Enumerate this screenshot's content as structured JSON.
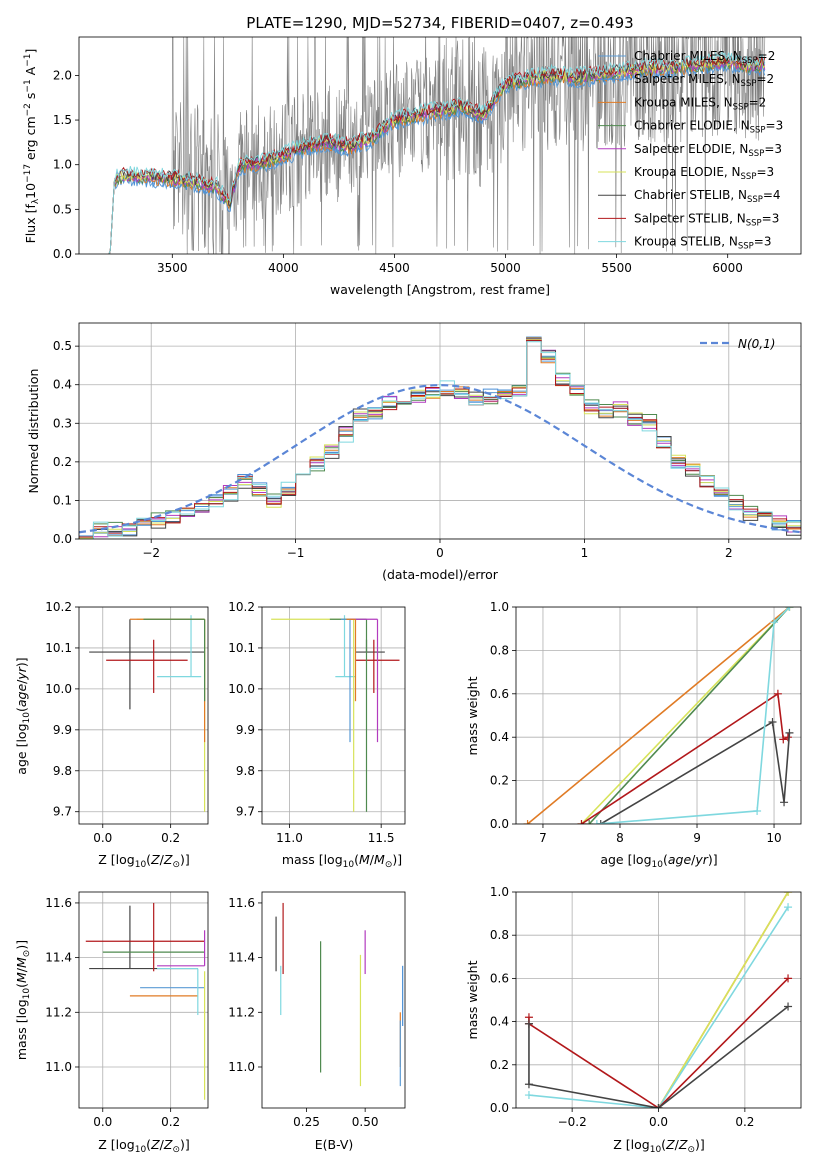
{
  "figure": {
    "title": "PLATE=1290, MJD=52734, FIBERID=0407, z=0.493"
  },
  "colors": {
    "Chabrier MILES": "#5b9bd5",
    "Salpeter MILES": "#4a8fd6",
    "Kroupa MILES": "#e07b25",
    "Chabrier ELODIE": "#4f8a4f",
    "Salpeter ELODIE": "#b23bbf",
    "Kroupa ELODIE": "#d7e35a",
    "Chabrier STELIB": "#444444",
    "Salpeter STELIB": "#b2181b",
    "Kroupa STELIB": "#7fd8df",
    "data": "#808080",
    "normal": "#5b86d6"
  },
  "chart_data": [
    {
      "id": "spectrum",
      "type": "line",
      "title": "PLATE=1290, MJD=52734, FIBERID=0407, z=0.493",
      "xlabel": "wavelength [Angstrom, rest frame]",
      "ylabel": "Flux [f_λ 10^-17 erg cm^-2 s^-1 A^-1]",
      "xlim": [
        3080,
        6330
      ],
      "ylim": [
        0,
        2.43
      ],
      "xticks": [
        3500,
        4000,
        4500,
        5000,
        5500,
        6000
      ],
      "yticks": [
        0.0,
        0.5,
        1.0,
        1.5,
        2.0
      ],
      "grid": false,
      "legend_position": "right",
      "continuum": {
        "wavelength": [
          3220,
          3240,
          3300,
          3400,
          3500,
          3600,
          3700,
          3760,
          3800,
          3900,
          4000,
          4100,
          4200,
          4300,
          4400,
          4500,
          4600,
          4700,
          4800,
          4900,
          5000,
          5100,
          5200,
          5300,
          5400,
          5500,
          5600,
          5700,
          5800,
          5900,
          6000,
          6100,
          6170
        ],
        "flux": [
          0.0,
          0.85,
          0.87,
          0.86,
          0.84,
          0.8,
          0.75,
          0.55,
          0.98,
          1.02,
          1.1,
          1.2,
          1.25,
          1.2,
          1.3,
          1.5,
          1.55,
          1.6,
          1.65,
          1.55,
          1.9,
          1.95,
          2.0,
          1.97,
          2.0,
          2.03,
          2.07,
          2.08,
          2.1,
          2.12,
          2.15,
          2.1,
          2.12
        ]
      },
      "series": [
        {
          "name": "Chabrier MILES, N_SSP=2",
          "label_main": "Chabrier MILES, N",
          "label_sub": "SSP",
          "label_tail": "=2",
          "color": "#5b9bd5"
        },
        {
          "name": "Salpeter MILES, N_SSP=2",
          "label_main": "Salpeter MILES, N",
          "label_sub": "SSP",
          "label_tail": "=2",
          "color": "#4a8fd6"
        },
        {
          "name": "Kroupa MILES, N_SSP=2",
          "label_main": "Kroupa MILES, N",
          "label_sub": "SSP",
          "label_tail": "=2",
          "color": "#e07b25"
        },
        {
          "name": "Chabrier ELODIE, N_SSP=3",
          "label_main": "Chabrier ELODIE, N",
          "label_sub": "SSP",
          "label_tail": "=3",
          "color": "#4f8a4f"
        },
        {
          "name": "Salpeter ELODIE, N_SSP=3",
          "label_main": "Salpeter ELODIE, N",
          "label_sub": "SSP",
          "label_tail": "=3",
          "color": "#b23bbf"
        },
        {
          "name": "Kroupa ELODIE, N_SSP=3",
          "label_main": "Kroupa ELODIE, N",
          "label_sub": "SSP",
          "label_tail": "=3",
          "color": "#d7e35a"
        },
        {
          "name": "Chabrier STELIB, N_SSP=4",
          "label_main": "Chabrier STELIB, N",
          "label_sub": "SSP",
          "label_tail": "=4",
          "color": "#444444"
        },
        {
          "name": "Salpeter STELIB, N_SSP=3",
          "label_main": "Salpeter STELIB, N",
          "label_sub": "SSP",
          "label_tail": "=3",
          "color": "#b2181b"
        },
        {
          "name": "Kroupa STELIB, N_SSP=3",
          "label_main": "Kroupa STELIB, N",
          "label_sub": "SSP",
          "label_tail": "=3",
          "color": "#7fd8df"
        }
      ]
    },
    {
      "id": "residuals",
      "type": "line",
      "xlabel": "(data-model)/error",
      "ylabel": "Normed distribution",
      "xlim": [
        -2.5,
        2.5
      ],
      "ylim": [
        0,
        0.56
      ],
      "xticks": [
        -2,
        -1,
        0,
        1,
        2
      ],
      "yticks": [
        0.0,
        0.1,
        0.2,
        0.3,
        0.4,
        0.5
      ],
      "grid": true,
      "legend_position": "top-right",
      "legend": "N(0,1)",
      "bin_edges_start": -2.5,
      "bin_width": 0.1,
      "histogram": [
        0.02,
        0.025,
        0.02,
        0.03,
        0.035,
        0.045,
        0.055,
        0.07,
        0.08,
        0.1,
        0.12,
        0.15,
        0.13,
        0.1,
        0.13,
        0.17,
        0.2,
        0.23,
        0.27,
        0.32,
        0.33,
        0.35,
        0.36,
        0.37,
        0.38,
        0.39,
        0.38,
        0.36,
        0.37,
        0.38,
        0.39,
        0.52,
        0.47,
        0.41,
        0.38,
        0.34,
        0.33,
        0.34,
        0.31,
        0.3,
        0.25,
        0.2,
        0.18,
        0.15,
        0.12,
        0.09,
        0.07,
        0.06,
        0.04,
        0.03
      ],
      "histogram_jitter": [
        0.012,
        0.02,
        0.015,
        0.025,
        0.02,
        0.018,
        0.022,
        0.015,
        0.02
      ],
      "normal_curve": "N(0,1)"
    },
    {
      "id": "age_vs_Z",
      "type": "scatter",
      "xlabel": "Z [log10(Z/Z_sun)]",
      "ylabel": "age [log10(age/yr)]",
      "xlim": [
        -0.07,
        0.31
      ],
      "ylim": [
        9.67,
        10.2
      ],
      "xticks": [
        0.0,
        0.2
      ],
      "yticks": [
        9.7,
        9.8,
        9.9,
        10.0,
        10.1,
        10.2
      ],
      "grid": true,
      "points": [
        {
          "series": "Chabrier STELIB",
          "x": 0.08,
          "y": 10.09,
          "xerr": [
            0.12,
            0.22
          ],
          "yerr": [
            0.14,
            0.08
          ]
        },
        {
          "series": "Salpeter STELIB",
          "x": 0.15,
          "y": 10.07,
          "xerr": [
            0.14,
            0.1
          ],
          "yerr": [
            0.08,
            0.05
          ]
        },
        {
          "series": "Kroupa STELIB",
          "x": 0.26,
          "y": 10.03,
          "xerr": [
            0.1,
            0.03
          ],
          "yerr": [
            0.0,
            0.15
          ]
        },
        {
          "series": "Kroupa ELODIE",
          "x": 0.3,
          "y": 10.17,
          "xerr": [
            0.2,
            0.0
          ],
          "yerr": [
            0.47,
            0.0
          ]
        },
        {
          "series": "Kroupa MILES",
          "x": 0.3,
          "y": 10.17,
          "xerr": [
            0.22,
            0.0
          ],
          "yerr": [
            0.3,
            0.0
          ]
        },
        {
          "series": "Chabrier ELODIE",
          "x": 0.3,
          "y": 10.17,
          "xerr": [
            0.18,
            0.0
          ],
          "yerr": [
            0.2,
            0.0
          ]
        }
      ]
    },
    {
      "id": "age_vs_mass",
      "type": "scatter",
      "xlabel": "mass [log10(M/M_sun)]",
      "ylabel": "",
      "xlim": [
        10.85,
        11.63
      ],
      "ylim": [
        9.67,
        10.2
      ],
      "xticks": [
        11.0,
        11.5
      ],
      "yticks": [
        9.7,
        9.8,
        9.9,
        10.0,
        10.1,
        10.2
      ],
      "grid": true,
      "points": [
        {
          "series": "Chabrier STELIB",
          "x": 11.42,
          "y": 10.09,
          "xerr": [
            0.06,
            0.1
          ],
          "yerr": [
            0.0,
            0.03
          ]
        },
        {
          "series": "Salpeter STELIB",
          "x": 11.46,
          "y": 10.07,
          "xerr": [
            0.1,
            0.14
          ],
          "yerr": [
            0.08,
            0.05
          ]
        },
        {
          "series": "Kroupa STELIB",
          "x": 11.3,
          "y": 10.03,
          "xerr": [
            0.05,
            0.06
          ],
          "yerr": [
            0.0,
            0.15
          ]
        },
        {
          "series": "Kroupa ELODIE",
          "x": 11.35,
          "y": 10.17,
          "xerr": [
            0.45,
            0.0
          ],
          "yerr": [
            0.47,
            0.0
          ]
        },
        {
          "series": "Chabrier ELODIE",
          "x": 11.42,
          "y": 10.17,
          "xerr": [
            0.2,
            0.0
          ],
          "yerr": [
            0.47,
            0.0
          ]
        },
        {
          "series": "Salpeter ELODIE",
          "x": 11.48,
          "y": 10.17,
          "xerr": [
            0.15,
            0.0
          ],
          "yerr": [
            0.3,
            0.0
          ]
        },
        {
          "series": "Chabrier MILES",
          "x": 11.33,
          "y": 10.17,
          "xerr": [
            0.05,
            0.0
          ],
          "yerr": [
            0.3,
            0.0
          ]
        },
        {
          "series": "Kroupa MILES",
          "x": 11.36,
          "y": 10.17,
          "xerr": [
            0.05,
            0.0
          ],
          "yerr": [
            0.2,
            0.0
          ]
        }
      ]
    },
    {
      "id": "mass_weight_vs_age",
      "type": "line",
      "xlabel": "age [log10(age/yr)]",
      "ylabel": "mass weight",
      "xlim": [
        6.65,
        10.35
      ],
      "ylim": [
        0,
        1
      ],
      "xticks": [
        7,
        8,
        9,
        10
      ],
      "yticks": [
        0.0,
        0.2,
        0.4,
        0.6,
        0.8,
        1.0
      ],
      "grid": true,
      "series": [
        {
          "name": "Kroupa MILES",
          "x": [
            6.8,
            10.2
          ],
          "y": [
            0.0,
            1.0
          ]
        },
        {
          "name": "Kroupa ELODIE",
          "x": [
            7.5,
            10.2
          ],
          "y": [
            0.0,
            1.0
          ]
        },
        {
          "name": "Chabrier ELODIE",
          "x": [
            7.6,
            10.2
          ],
          "y": [
            0.0,
            1.0
          ]
        },
        {
          "name": "Salpeter STELIB",
          "x": [
            7.5,
            10.05,
            10.12,
            10.18
          ],
          "y": [
            0.0,
            0.6,
            0.39,
            0.4
          ]
        },
        {
          "name": "Chabrier STELIB",
          "x": [
            7.75,
            9.98,
            10.13,
            10.2
          ],
          "y": [
            0.0,
            0.47,
            0.1,
            0.42
          ]
        },
        {
          "name": "Kroupa STELIB",
          "x": [
            7.7,
            9.78,
            10.0,
            10.2
          ],
          "y": [
            0.0,
            0.06,
            0.93,
            1.0
          ]
        }
      ]
    },
    {
      "id": "mass_vs_Z",
      "type": "scatter",
      "xlabel": "Z [log10(Z/Z_sun)]",
      "ylabel": "mass [log10(M/M_sun)]",
      "xlim": [
        -0.07,
        0.31
      ],
      "ylim": [
        10.85,
        11.64
      ],
      "xticks": [
        0.0,
        0.2
      ],
      "yticks": [
        11.0,
        11.2,
        11.4,
        11.6
      ],
      "grid": true,
      "points": [
        {
          "series": "Chabrier STELIB",
          "x": 0.08,
          "y": 11.36,
          "xerr": [
            0.12,
            0.2
          ],
          "yerr": [
            0.0,
            0.23
          ]
        },
        {
          "series": "Salpeter STELIB",
          "x": 0.15,
          "y": 11.46,
          "xerr": [
            0.2,
            0.15
          ],
          "yerr": [
            0.11,
            0.14
          ]
        },
        {
          "series": "Chabrier ELODIE",
          "x": 0.15,
          "y": 11.42,
          "xerr": [
            0.15,
            0.15
          ],
          "yerr": [
            0.0,
            0.0
          ]
        },
        {
          "series": "Kroupa MILES",
          "x": 0.18,
          "y": 11.26,
          "xerr": [
            0.1,
            0.1
          ],
          "yerr": [
            0.0,
            0.0
          ]
        },
        {
          "series": "Chabrier MILES",
          "x": 0.22,
          "y": 11.29,
          "xerr": [
            0.11,
            0.08
          ],
          "yerr": [
            0.0,
            0.0
          ]
        },
        {
          "series": "Salpeter ELODIE",
          "x": 0.3,
          "y": 11.37,
          "xerr": [
            0.14,
            0.0
          ],
          "yerr": [
            0.0,
            0.13
          ]
        },
        {
          "series": "Kroupa STELIB",
          "x": 0.28,
          "y": 11.36,
          "xerr": [
            0.12,
            0.0
          ],
          "yerr": [
            0.17,
            0.0
          ]
        },
        {
          "series": "Kroupa ELODIE",
          "x": 0.3,
          "y": 11.35,
          "xerr": [
            0.0,
            0.0
          ],
          "yerr": [
            0.47,
            0.0
          ]
        }
      ]
    },
    {
      "id": "mass_vs_ebv",
      "type": "scatter",
      "xlabel": "E(B-V)",
      "ylabel": "",
      "xlim": [
        0.06,
        0.67
      ],
      "ylim": [
        10.85,
        11.64
      ],
      "xticks": [
        0.25,
        0.5
      ],
      "yticks": [
        11.0,
        11.2,
        11.4,
        11.6
      ],
      "grid": false,
      "points": [
        {
          "series": "Chabrier STELIB",
          "x": 0.12,
          "y": 11.45,
          "yerr": [
            0.1,
            0.1
          ]
        },
        {
          "series": "Salpeter STELIB",
          "x": 0.15,
          "y": 11.47,
          "yerr": [
            0.13,
            0.13
          ]
        },
        {
          "series": "Kroupa STELIB",
          "x": 0.14,
          "y": 11.28,
          "yerr": [
            0.09,
            0.09
          ]
        },
        {
          "series": "Chabrier ELODIE",
          "x": 0.31,
          "y": 11.22,
          "yerr": [
            0.24,
            0.24
          ]
        },
        {
          "series": "Kroupa ELODIE",
          "x": 0.48,
          "y": 11.17,
          "yerr": [
            0.24,
            0.24
          ]
        },
        {
          "series": "Salpeter ELODIE",
          "x": 0.5,
          "y": 11.42,
          "yerr": [
            0.08,
            0.08
          ]
        },
        {
          "series": "Kroupa MILES",
          "x": 0.65,
          "y": 11.1,
          "yerr": [
            0.1,
            0.1
          ]
        },
        {
          "series": "Salpeter MILES",
          "x": 0.66,
          "y": 11.26,
          "yerr": [
            0.11,
            0.11
          ]
        },
        {
          "series": "Chabrier MILES",
          "x": 0.65,
          "y": 11.05,
          "yerr": [
            0.12,
            0.12
          ]
        }
      ]
    },
    {
      "id": "mass_weight_vs_Z",
      "type": "line",
      "xlabel": "Z [log10(Z/Z_sun)]",
      "ylabel": "mass weight",
      "xlim": [
        -0.33,
        0.33
      ],
      "ylim": [
        0,
        1
      ],
      "xticks": [
        -0.2,
        0.0,
        0.2
      ],
      "yticks": [
        0.0,
        0.2,
        0.4,
        0.6,
        0.8,
        1.0
      ],
      "grid": true,
      "series": [
        {
          "name": "Kroupa MILES",
          "x": [
            0.0,
            0.3
          ],
          "y": [
            0.0,
            1.0
          ]
        },
        {
          "name": "Kroupa ELODIE",
          "x": [
            0.0,
            0.3
          ],
          "y": [
            0.0,
            1.0
          ]
        },
        {
          "name": "Kroupa STELIB",
          "x": [
            -0.3,
            0.0,
            0.3
          ],
          "y": [
            0.06,
            0.0,
            0.93
          ]
        },
        {
          "name": "Salpeter STELIB",
          "x": [
            -0.3,
            -0.3,
            0.0,
            0.3
          ],
          "y": [
            0.42,
            0.39,
            0.0,
            0.6
          ]
        },
        {
          "name": "Chabrier STELIB",
          "x": [
            -0.3,
            -0.3,
            0.0,
            0.3
          ],
          "y": [
            0.39,
            0.11,
            0.0,
            0.47
          ]
        }
      ]
    }
  ]
}
